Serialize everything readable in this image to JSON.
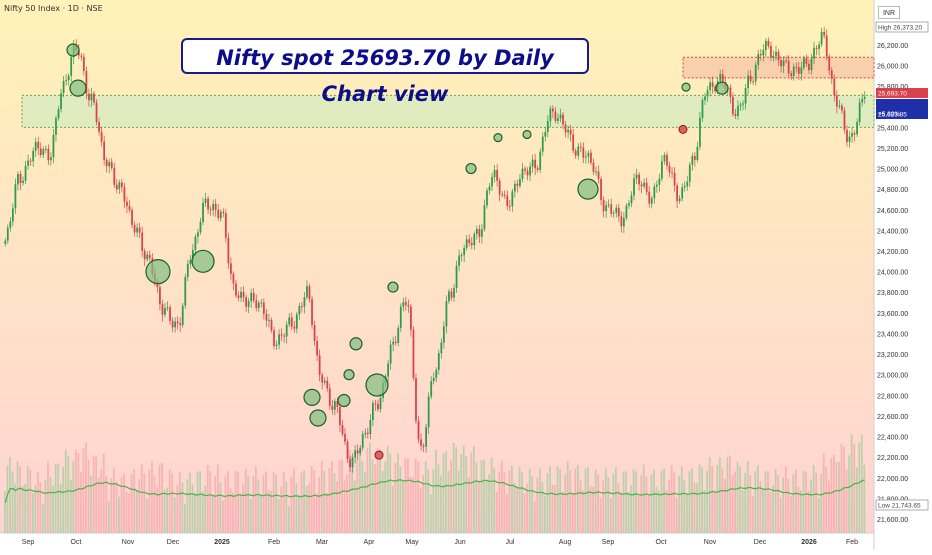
{
  "header": {
    "symbol": "Nifty 50 Index · 1D · NSE"
  },
  "title": "Nifty spot 25693.70 by Daily Chart view",
  "currency": "INR",
  "markers": {
    "high_label": "High",
    "high_value": "26,373.20",
    "low_label": "Low",
    "low_value": "21,743.65",
    "last_price": "25,693.70",
    "prev_value": "25,623.85",
    "change": "+5.80%"
  },
  "colors": {
    "up": "#2e9a4a",
    "down": "#d9414c",
    "volume_up": "#9fcf9a",
    "volume_down": "#f3a5a8",
    "volume_ma": "#4caf50",
    "support_zone": "#d8ebc0",
    "resistance_zone": "#f6c8a8",
    "bg_top": "#fff3b8",
    "bg_bottom": "#ffd3d3",
    "title_text": "#0d0d8a"
  },
  "chart_data": {
    "type": "line",
    "title": "Nifty spot 25693.70 by Daily Chart view",
    "xlabel": "",
    "ylabel": "",
    "ylim": [
      21600,
      26373.2
    ],
    "yticks": [
      21600,
      21800,
      22000,
      22200,
      22400,
      22600,
      22800,
      23000,
      23200,
      23400,
      23600,
      23800,
      24000,
      24200,
      24400,
      24600,
      24800,
      25000,
      25200,
      25400,
      25600,
      25800,
      26000,
      26200
    ],
    "ytick_labels": [
      "21,600.00",
      "21,800.00",
      "22,000.00",
      "22,200.00",
      "22,400.00",
      "22,600.00",
      "22,800.00",
      "23,000.00",
      "23,200.00",
      "23,400.00",
      "23,600.00",
      "23,800.00",
      "24,000.00",
      "24,200.00",
      "24,400.00",
      "24,600.00",
      "24,800.00",
      "25,000.00",
      "25,200.00",
      "25,400.00",
      "25,600.00",
      "25,800.00",
      "26,000.00",
      "26,200.00"
    ],
    "x_tick_labels": [
      "Sep",
      "Oct",
      "Nov",
      "Dec",
      "2025",
      "Feb",
      "Mar",
      "Apr",
      "May",
      "Jun",
      "Jul",
      "Aug",
      "Sep",
      "Oct",
      "Nov",
      "Dec",
      "2026",
      "Feb"
    ],
    "series": [
      {
        "values": [
          {
            "x": "Aug",
            "y": 24300
          },
          {
            "x": "Aug",
            "y": 24900
          },
          {
            "x": "Sep",
            "y": 25200
          },
          {
            "x": "Sep",
            "y": 25100
          },
          {
            "x": "Sep",
            "y": 25800
          },
          {
            "x": "Sep",
            "y": 26150
          },
          {
            "x": "Oct",
            "y": 25700
          },
          {
            "x": "Oct",
            "y": 25050
          },
          {
            "x": "Oct",
            "y": 24850
          },
          {
            "x": "Oct",
            "y": 24400
          },
          {
            "x": "Nov",
            "y": 24150
          },
          {
            "x": "Nov",
            "y": 23600
          },
          {
            "x": "Nov",
            "y": 23500
          },
          {
            "x": "Nov",
            "y": 24150
          },
          {
            "x": "Dec",
            "y": 24700
          },
          {
            "x": "Dec",
            "y": 24550
          },
          {
            "x": "Dec",
            "y": 23850
          },
          {
            "x": "Dec",
            "y": 23700
          },
          {
            "x": "2025",
            "y": 23650
          },
          {
            "x": "2025",
            "y": 23300
          },
          {
            "x": "Feb",
            "y": 23500
          },
          {
            "x": "Feb",
            "y": 23800
          },
          {
            "x": "Feb",
            "y": 23000
          },
          {
            "x": "Feb",
            "y": 22700
          },
          {
            "x": "Mar",
            "y": 22150
          },
          {
            "x": "Mar",
            "y": 22400
          },
          {
            "x": "Mar",
            "y": 22700
          },
          {
            "x": "Mar",
            "y": 23300
          },
          {
            "x": "Mar",
            "y": 23700
          },
          {
            "x": "Apr",
            "y": 22300
          },
          {
            "x": "Apr",
            "y": 23000
          },
          {
            "x": "Apr",
            "y": 23800
          },
          {
            "x": "Apr",
            "y": 24200
          },
          {
            "x": "May",
            "y": 24400
          },
          {
            "x": "May",
            "y": 24900
          },
          {
            "x": "May",
            "y": 24700
          },
          {
            "x": "Jun",
            "y": 24900
          },
          {
            "x": "Jun",
            "y": 25050
          },
          {
            "x": "Jun",
            "y": 25500
          },
          {
            "x": "Jul",
            "y": 25450
          },
          {
            "x": "Jul",
            "y": 25150
          },
          {
            "x": "Jul",
            "y": 25050
          },
          {
            "x": "Aug",
            "y": 24600
          },
          {
            "x": "Aug",
            "y": 24500
          },
          {
            "x": "Aug",
            "y": 24900
          },
          {
            "x": "Sep",
            "y": 24700
          },
          {
            "x": "Sep",
            "y": 25100
          },
          {
            "x": "Sep",
            "y": 24700
          },
          {
            "x": "Oct",
            "y": 25100
          },
          {
            "x": "Oct",
            "y": 25750
          },
          {
            "x": "Oct",
            "y": 25900
          },
          {
            "x": "Nov",
            "y": 25500
          },
          {
            "x": "Nov",
            "y": 25900
          },
          {
            "x": "Nov",
            "y": 26150
          },
          {
            "x": "Dec",
            "y": 26100
          },
          {
            "x": "Dec",
            "y": 25900
          },
          {
            "x": "Dec",
            "y": 26050
          },
          {
            "x": "2026",
            "y": 26250
          },
          {
            "x": "2026",
            "y": 25700
          },
          {
            "x": "Feb",
            "y": 25250
          },
          {
            "x": "Feb",
            "y": 25693.7
          }
        ]
      }
    ],
    "volume": [
      22,
      18,
      14,
      20,
      26,
      30,
      24,
      16,
      14,
      18,
      20,
      16,
      14,
      16,
      18,
      15,
      16,
      17,
      15,
      14,
      16,
      18,
      20,
      22,
      26,
      30,
      28,
      24,
      22,
      20,
      26,
      30,
      28,
      22,
      20,
      18,
      16,
      16,
      18,
      20,
      18,
      16,
      17,
      16,
      18,
      16,
      18,
      17,
      19,
      22,
      24,
      20,
      18,
      16,
      17,
      16,
      18,
      24,
      30,
      34,
      26
    ],
    "zones": [
      {
        "name": "support",
        "from": 25400,
        "to": 25710
      },
      {
        "name": "resistance",
        "from": 25880,
        "to": 26080
      }
    ]
  }
}
